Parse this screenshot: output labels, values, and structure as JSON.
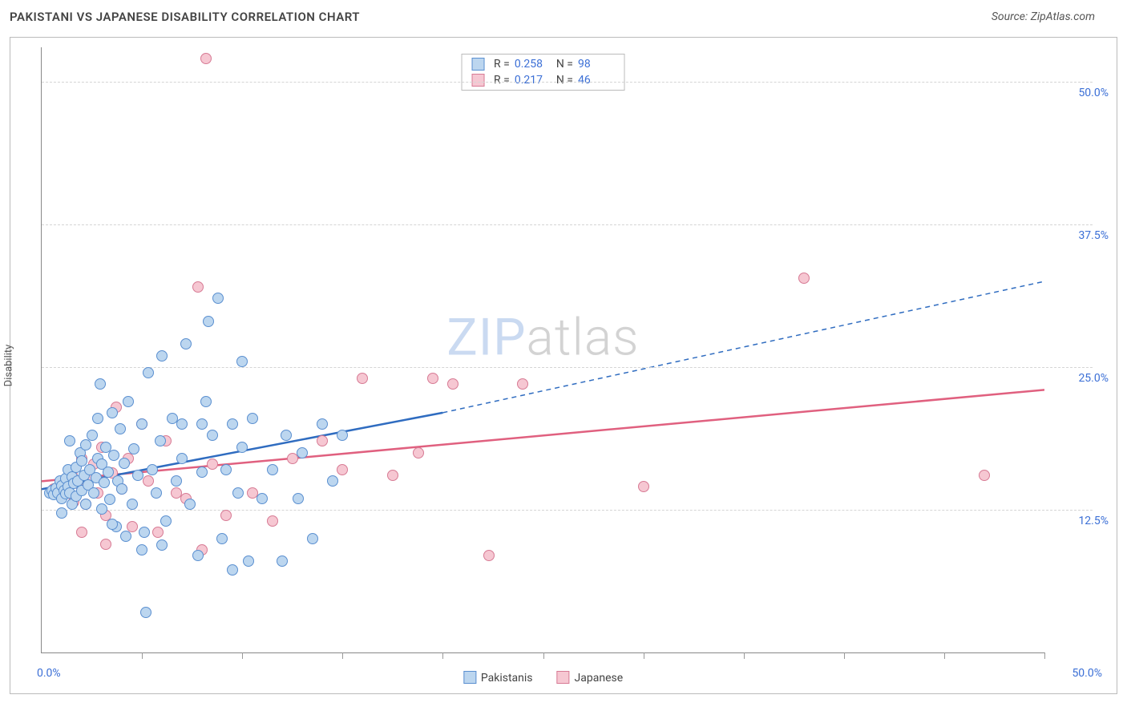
{
  "title": "PAKISTANI VS JAPANESE DISABILITY CORRELATION CHART",
  "source_label": "Source: ZipAtlas.com",
  "ylabel": "Disability",
  "watermark_a": "ZIP",
  "watermark_b": "atlas",
  "chart": {
    "type": "scatter",
    "xlim": [
      0,
      50
    ],
    "ylim": [
      0,
      53
    ],
    "x_labels": {
      "min": "0.0%",
      "max": "50.0%"
    },
    "y_ticks": [
      {
        "v": 12.5,
        "label": "12.5%"
      },
      {
        "v": 25.0,
        "label": "25.0%"
      },
      {
        "v": 37.5,
        "label": "37.5%"
      },
      {
        "v": 50.0,
        "label": "50.0%"
      }
    ],
    "x_tick_positions": [
      5,
      10,
      15,
      20,
      25,
      30,
      35,
      40,
      45,
      50
    ],
    "grid_color": "#d5d5d5",
    "axis_color": "#888888",
    "background_color": "#ffffff",
    "marker_radius": 7,
    "marker_border_width": 1,
    "series": {
      "pakistanis": {
        "label": "Pakistanis",
        "fill": "#bcd6ef",
        "stroke": "#5a8fd0",
        "line_color": "#2f6cc0",
        "line_width": 2.5,
        "trend": {
          "y0": 14.3,
          "x_solid_end": 20,
          "y_solid_end": 21.0,
          "x_end": 50,
          "y_end": 32.5
        },
        "R": "0.258",
        "N": "98",
        "points": [
          [
            0.4,
            14.0
          ],
          [
            0.5,
            14.2
          ],
          [
            0.6,
            13.8
          ],
          [
            0.7,
            14.4
          ],
          [
            0.8,
            14.0
          ],
          [
            0.9,
            15.0
          ],
          [
            1.0,
            13.5
          ],
          [
            1.0,
            14.6
          ],
          [
            1.1,
            14.2
          ],
          [
            1.2,
            13.9
          ],
          [
            1.2,
            15.2
          ],
          [
            1.3,
            14.5
          ],
          [
            1.3,
            16.0
          ],
          [
            1.4,
            14.0
          ],
          [
            1.5,
            13.0
          ],
          [
            1.5,
            15.4
          ],
          [
            1.6,
            14.8
          ],
          [
            1.7,
            13.7
          ],
          [
            1.7,
            16.2
          ],
          [
            1.8,
            15.0
          ],
          [
            1.9,
            17.5
          ],
          [
            2.0,
            14.2
          ],
          [
            2.0,
            16.8
          ],
          [
            2.1,
            15.5
          ],
          [
            2.2,
            13.0
          ],
          [
            2.2,
            18.2
          ],
          [
            2.3,
            14.7
          ],
          [
            2.4,
            16.0
          ],
          [
            2.5,
            19.0
          ],
          [
            2.6,
            14.0
          ],
          [
            2.7,
            15.3
          ],
          [
            2.8,
            17.0
          ],
          [
            2.8,
            20.5
          ],
          [
            3.0,
            12.6
          ],
          [
            3.0,
            16.5
          ],
          [
            3.1,
            14.9
          ],
          [
            3.2,
            18.0
          ],
          [
            3.3,
            15.8
          ],
          [
            3.4,
            13.4
          ],
          [
            3.5,
            21.0
          ],
          [
            3.6,
            17.3
          ],
          [
            3.7,
            11.0
          ],
          [
            3.8,
            15.0
          ],
          [
            3.9,
            19.6
          ],
          [
            4.0,
            14.3
          ],
          [
            4.1,
            16.6
          ],
          [
            4.3,
            22.0
          ],
          [
            4.5,
            13.0
          ],
          [
            4.6,
            17.8
          ],
          [
            4.8,
            15.5
          ],
          [
            5.0,
            20.0
          ],
          [
            5.1,
            10.5
          ],
          [
            5.3,
            24.5
          ],
          [
            5.5,
            16.0
          ],
          [
            5.7,
            14.0
          ],
          [
            5.9,
            18.5
          ],
          [
            6.0,
            26.0
          ],
          [
            6.2,
            11.5
          ],
          [
            6.5,
            20.5
          ],
          [
            6.7,
            15.0
          ],
          [
            7.0,
            20.0
          ],
          [
            7.0,
            17.0
          ],
          [
            7.2,
            27.0
          ],
          [
            7.4,
            13.0
          ],
          [
            7.8,
            8.5
          ],
          [
            8.0,
            20.0
          ],
          [
            8.0,
            15.8
          ],
          [
            8.2,
            22.0
          ],
          [
            8.3,
            29.0
          ],
          [
            8.8,
            31.0
          ],
          [
            8.5,
            19.0
          ],
          [
            9.0,
            10.0
          ],
          [
            9.2,
            16.0
          ],
          [
            9.5,
            7.2
          ],
          [
            9.5,
            20.0
          ],
          [
            9.8,
            14.0
          ],
          [
            10.0,
            25.5
          ],
          [
            10.0,
            18.0
          ],
          [
            10.3,
            8.0
          ],
          [
            10.5,
            20.5
          ],
          [
            11.0,
            13.5
          ],
          [
            11.5,
            16.0
          ],
          [
            12.0,
            8.0
          ],
          [
            12.2,
            19.0
          ],
          [
            12.8,
            13.5
          ],
          [
            13.0,
            17.5
          ],
          [
            13.5,
            10.0
          ],
          [
            14.0,
            20.0
          ],
          [
            14.5,
            15.0
          ],
          [
            15.0,
            19.0
          ],
          [
            3.5,
            11.2
          ],
          [
            4.2,
            10.2
          ],
          [
            5.2,
            3.5
          ],
          [
            5.0,
            9.0
          ],
          [
            6.0,
            9.4
          ],
          [
            2.9,
            23.5
          ],
          [
            1.4,
            18.5
          ],
          [
            1.0,
            12.2
          ]
        ]
      },
      "japanese": {
        "label": "Japanese",
        "fill": "#f6c7d2",
        "stroke": "#d77a94",
        "line_color": "#e0607f",
        "line_width": 2.5,
        "trend": {
          "y0": 15.0,
          "x_solid_end": 50,
          "y_solid_end": 23.0,
          "x_end": 50,
          "y_end": 23.0
        },
        "R": "0.217",
        "N": "46",
        "points": [
          [
            0.6,
            14.3
          ],
          [
            0.9,
            13.8
          ],
          [
            1.2,
            14.5
          ],
          [
            1.5,
            15.5
          ],
          [
            1.6,
            13.2
          ],
          [
            1.8,
            14.8
          ],
          [
            2.0,
            17.0
          ],
          [
            2.2,
            13.0
          ],
          [
            2.4,
            15.2
          ],
          [
            2.6,
            16.5
          ],
          [
            2.8,
            14.0
          ],
          [
            3.0,
            18.0
          ],
          [
            3.2,
            12.0
          ],
          [
            3.5,
            15.7
          ],
          [
            3.7,
            21.5
          ],
          [
            4.0,
            14.3
          ],
          [
            4.3,
            17.0
          ],
          [
            4.5,
            11.0
          ],
          [
            5.0,
            20.0
          ],
          [
            5.3,
            15.0
          ],
          [
            5.8,
            10.5
          ],
          [
            6.2,
            18.5
          ],
          [
            6.7,
            14.0
          ],
          [
            7.2,
            13.5
          ],
          [
            7.8,
            32.0
          ],
          [
            8.0,
            9.0
          ],
          [
            8.2,
            52.0
          ],
          [
            8.5,
            16.5
          ],
          [
            9.2,
            12.0
          ],
          [
            10.5,
            14.0
          ],
          [
            11.5,
            11.5
          ],
          [
            12.5,
            17.0
          ],
          [
            14.0,
            18.5
          ],
          [
            15.0,
            16.0
          ],
          [
            16.0,
            24.0
          ],
          [
            17.5,
            15.5
          ],
          [
            18.8,
            17.5
          ],
          [
            19.5,
            24.0
          ],
          [
            20.5,
            23.5
          ],
          [
            22.3,
            8.5
          ],
          [
            24.0,
            23.5
          ],
          [
            30.0,
            14.5
          ],
          [
            38.0,
            32.8
          ],
          [
            47.0,
            15.5
          ],
          [
            2.0,
            10.5
          ],
          [
            3.2,
            9.5
          ]
        ]
      }
    }
  },
  "legend_bottom_prefix": "",
  "top_legend": {
    "R_label": "R =",
    "N_label": "N ="
  }
}
